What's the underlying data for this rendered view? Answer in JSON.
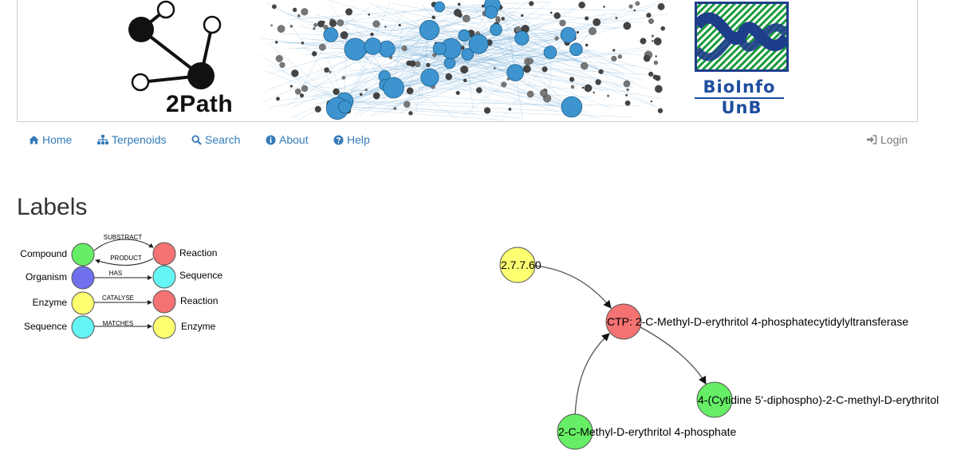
{
  "banner": {
    "brand_left": "2Path",
    "brand_right_line1": "BioInfo",
    "brand_right_line2": "UnB"
  },
  "nav": {
    "items": [
      {
        "label": "Home",
        "icon": "home-icon"
      },
      {
        "label": "Terpenoids",
        "icon": "sitemap-icon"
      },
      {
        "label": "Search",
        "icon": "search-icon"
      },
      {
        "label": "About",
        "icon": "info-circle-icon"
      },
      {
        "label": "Help",
        "icon": "question-circle-icon"
      }
    ],
    "login": {
      "label": "Login",
      "icon": "sign-in-icon"
    }
  },
  "page": {
    "title": "Labels"
  },
  "legend": {
    "rows": [
      {
        "left": "Compound",
        "relation": "SUBSTRACT",
        "relation2": "PRODUCT",
        "right": "Reaction"
      },
      {
        "left": "Organism",
        "relation": "HAS",
        "right": "Sequence"
      },
      {
        "left": "Enzyme",
        "relation": "CATALYSE",
        "right": "Reaction"
      },
      {
        "left": "Sequence",
        "relation": "MATCHES",
        "right": "Enzyme"
      }
    ],
    "colors": {
      "compound": "#66ee66",
      "reaction": "#f47272",
      "organism": "#7070ee",
      "sequence": "#66f5f5",
      "enzyme": "#ffff72"
    }
  },
  "graph": {
    "nodes": [
      {
        "id": "enzyme",
        "label": "2.7.7.60",
        "type": "enzyme"
      },
      {
        "id": "reaction",
        "label": "CTP: 2-C-Methyl-D-erythritol 4-phosphatecytidylyltransferase",
        "type": "reaction"
      },
      {
        "id": "product",
        "label": "4-(Cytidine 5'-diphospho)-2-C-methyl-D-erythritol",
        "type": "compound"
      },
      {
        "id": "substrate",
        "label": "2-C-Methyl-D-erythritol 4-phosphate",
        "type": "compound"
      }
    ]
  }
}
